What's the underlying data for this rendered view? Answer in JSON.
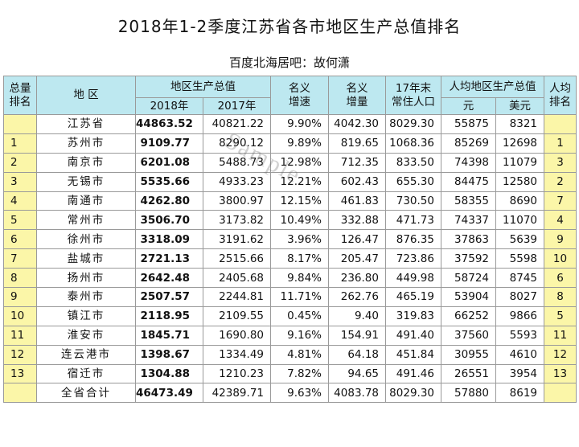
{
  "title": "2018年1-2季度江苏省各市地区生产总值排名",
  "subtitle": "百度北海居吧：故何潇",
  "watermark": "Sample",
  "headers": {
    "rank_total": "总量\n排名",
    "region": "地 区",
    "gdp": "地区生产总值",
    "y2018": "2018年",
    "y2017": "2017年",
    "nominal_growth": "名义\n增速",
    "nominal_increase": "名义\n增量",
    "population": "17年末\n常住人口",
    "per_capita": "人均地区生产总值",
    "yuan": "元",
    "usd": "美元",
    "per_capita_rank": "人均\n排名"
  },
  "rows": [
    {
      "rank": "",
      "region": "江苏省",
      "g2018": "44863.52",
      "g2017": "40821.22",
      "growth": "9.90%",
      "increase": "4042.30",
      "pop": "8029.30",
      "yuan": "55875",
      "usd": "8321",
      "prank": ""
    },
    {
      "rank": "1",
      "region": "苏州市",
      "g2018": "9109.77",
      "g2017": "8290.12",
      "growth": "9.89%",
      "increase": "819.65",
      "pop": "1068.36",
      "yuan": "85269",
      "usd": "12698",
      "prank": "1"
    },
    {
      "rank": "2",
      "region": "南京市",
      "g2018": "6201.08",
      "g2017": "5488.73",
      "growth": "12.98%",
      "increase": "712.35",
      "pop": "833.50",
      "yuan": "74398",
      "usd": "11079",
      "prank": "3"
    },
    {
      "rank": "3",
      "region": "无锡市",
      "g2018": "5535.66",
      "g2017": "4933.23",
      "growth": "12.21%",
      "increase": "602.43",
      "pop": "655.30",
      "yuan": "84475",
      "usd": "12580",
      "prank": "2"
    },
    {
      "rank": "4",
      "region": "南通市",
      "g2018": "4262.80",
      "g2017": "3800.97",
      "growth": "12.15%",
      "increase": "461.83",
      "pop": "730.50",
      "yuan": "58355",
      "usd": "8690",
      "prank": "7"
    },
    {
      "rank": "5",
      "region": "常州市",
      "g2018": "3506.70",
      "g2017": "3173.82",
      "growth": "10.49%",
      "increase": "332.88",
      "pop": "471.73",
      "yuan": "74337",
      "usd": "11070",
      "prank": "4"
    },
    {
      "rank": "6",
      "region": "徐州市",
      "g2018": "3318.09",
      "g2017": "3191.62",
      "growth": "3.96%",
      "increase": "126.47",
      "pop": "876.35",
      "yuan": "37863",
      "usd": "5639",
      "prank": "9"
    },
    {
      "rank": "7",
      "region": "盐城市",
      "g2018": "2721.13",
      "g2017": "2515.66",
      "growth": "8.17%",
      "increase": "205.47",
      "pop": "723.86",
      "yuan": "37592",
      "usd": "5598",
      "prank": "10"
    },
    {
      "rank": "8",
      "region": "扬州市",
      "g2018": "2642.48",
      "g2017": "2405.68",
      "growth": "9.84%",
      "increase": "236.80",
      "pop": "449.98",
      "yuan": "58724",
      "usd": "8745",
      "prank": "6"
    },
    {
      "rank": "9",
      "region": "泰州市",
      "g2018": "2507.57",
      "g2017": "2244.81",
      "growth": "11.71%",
      "increase": "262.76",
      "pop": "465.19",
      "yuan": "53904",
      "usd": "8027",
      "prank": "8"
    },
    {
      "rank": "10",
      "region": "镇江市",
      "g2018": "2118.95",
      "g2017": "2109.55",
      "growth": "0.45%",
      "increase": "9.40",
      "pop": "319.83",
      "yuan": "66252",
      "usd": "9866",
      "prank": "5"
    },
    {
      "rank": "11",
      "region": "淮安市",
      "g2018": "1845.71",
      "g2017": "1690.80",
      "growth": "9.16%",
      "increase": "154.91",
      "pop": "491.40",
      "yuan": "37560",
      "usd": "5593",
      "prank": "11"
    },
    {
      "rank": "12",
      "region": "连云港市",
      "g2018": "1398.67",
      "g2017": "1334.49",
      "growth": "4.81%",
      "increase": "64.18",
      "pop": "451.84",
      "yuan": "30955",
      "usd": "4610",
      "prank": "12"
    },
    {
      "rank": "13",
      "region": "宿迁市",
      "g2018": "1304.88",
      "g2017": "1210.23",
      "growth": "7.82%",
      "increase": "94.65",
      "pop": "491.46",
      "yuan": "26551",
      "usd": "3954",
      "prank": "13"
    },
    {
      "rank": "",
      "region": "全省合计",
      "g2018": "46473.49",
      "g2017": "42389.71",
      "growth": "9.63%",
      "increase": "4083.78",
      "pop": "8029.30",
      "yuan": "57880",
      "usd": "8619",
      "prank": ""
    }
  ]
}
